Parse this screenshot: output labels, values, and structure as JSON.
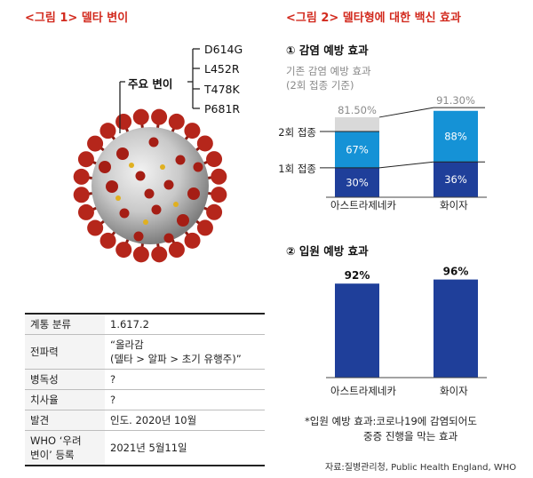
{
  "figure1": {
    "title": "<그림 1> 델타 변이",
    "main_label": "주요 변이",
    "mutations": [
      "D614G",
      "L452R",
      "T478K",
      "P681R"
    ]
  },
  "info_table": {
    "rows": [
      {
        "key": "계통 분류",
        "value": "1.617.2"
      },
      {
        "key": "전파력",
        "value": "“올라감\n(델타 > 알파 > 초기 유행주)”"
      },
      {
        "key": "병독성",
        "value": "?"
      },
      {
        "key": "치사율",
        "value": "?"
      },
      {
        "key": "발견",
        "value": "인도. 2020년 10월"
      },
      {
        "key": "WHO ‘우려\n변이’ 등록",
        "value": "2021년 5월11일"
      }
    ]
  },
  "figure2": {
    "title": "<그림 2> 델타형에 대한 백신 효과",
    "note_line1": "기존 감염 예방 효과",
    "note_line2": "(2회 접종 기준)",
    "footnote_line1": "*입원 예방 효과:코로나19에 감염되어도",
    "footnote_line2": "중증 진행을 막는 효과",
    "source": "자료:질병관리청, Public Health England, WHO"
  },
  "colors": {
    "dark_blue": "#1f3f9a",
    "light_blue": "#1592d6",
    "grey": "#d9d9d9",
    "title_red": "#d22a1e"
  },
  "chart_data": [
    {
      "type": "bar",
      "title": "① 감염 예방 효과",
      "categories": [
        "아스트라제네카",
        "화이자"
      ],
      "row_labels": [
        "2회 접종",
        "1회 접종"
      ],
      "series": [
        {
          "name": "1회 접종",
          "values": [
            30,
            36
          ],
          "labels": [
            "30%",
            "36%"
          ]
        },
        {
          "name": "2회 접종",
          "values": [
            67,
            88
          ],
          "labels": [
            "67%",
            "88%"
          ]
        },
        {
          "name": "기존 감염 예방 효과",
          "values": [
            81.5,
            91.3
          ],
          "labels": [
            "81.50%",
            "91.30%"
          ]
        }
      ]
    },
    {
      "type": "bar",
      "title": "② 입원 예방 효과",
      "categories": [
        "아스트라제네카",
        "화이자"
      ],
      "values": [
        92,
        96
      ],
      "labels": [
        "92%",
        "96%"
      ]
    }
  ]
}
